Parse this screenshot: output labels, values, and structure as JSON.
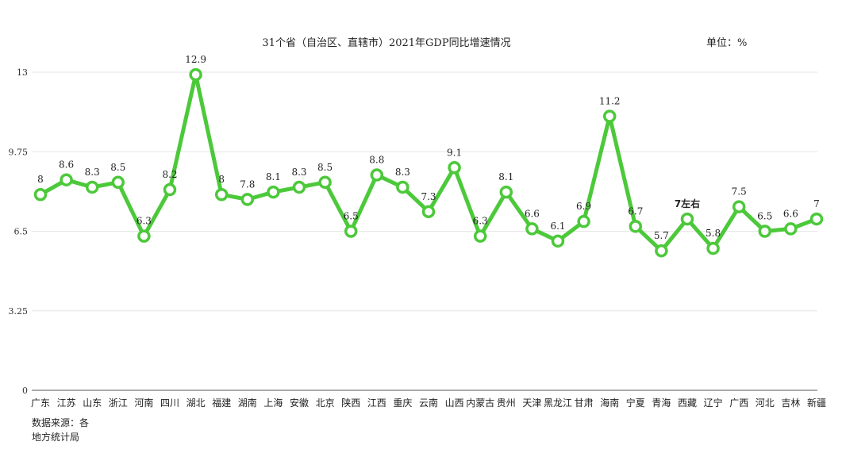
{
  "chart_data": {
    "type": "line",
    "title": "31个省（自治区、直辖市）2021年GDP同比增速情况",
    "unit_label": "单位：%",
    "categories": [
      "广东",
      "江苏",
      "山东",
      "浙江",
      "河南",
      "四川",
      "湖北",
      "福建",
      "湖南",
      "上海",
      "安徽",
      "北京",
      "陕西",
      "江西",
      "重庆",
      "云南",
      "山西",
      "内蒙古",
      "贵州",
      "天津",
      "黑龙江",
      "甘肃",
      "海南",
      "宁夏",
      "青海",
      "西藏",
      "辽宁",
      "广西",
      "河北",
      "吉林",
      "新疆"
    ],
    "values": [
      8,
      8.6,
      8.3,
      8.5,
      6.3,
      8.2,
      12.9,
      8,
      7.8,
      8.1,
      8.3,
      8.5,
      6.5,
      8.8,
      8.3,
      7.3,
      9.1,
      6.3,
      8.1,
      6.6,
      6.1,
      6.9,
      11.2,
      6.7,
      5.7,
      7,
      5.8,
      7.5,
      6.5,
      6.6,
      7
    ],
    "data_labels": [
      "8",
      "8.6",
      "8.3",
      "8.5",
      "6.3",
      "8.2",
      "12.9",
      "8",
      "7.8",
      "8.1",
      "8.3",
      "8.5",
      "6.5",
      "8.8",
      "8.3",
      "7.3",
      "9.1",
      "6.3",
      "8.1",
      "6.6",
      "6.1",
      "6.9",
      "11.2",
      "6.7",
      "5.7",
      "7左右",
      "5.8",
      "7.5",
      "6.5",
      "6.6",
      "7"
    ],
    "bold_label_indices": [
      25
    ],
    "ylim": [
      0,
      13
    ],
    "yticks": [
      "0",
      "3.25",
      "6.5",
      "9.75",
      "13"
    ],
    "ytick_values": [
      0,
      3.25,
      6.5,
      9.75,
      13
    ],
    "grid": true,
    "series_color": "#4cc93a",
    "grid_color": "#e6e6e6",
    "axis_color": "#555555"
  },
  "source": {
    "line1": "数据来源：各",
    "line2": "地方统计局"
  }
}
